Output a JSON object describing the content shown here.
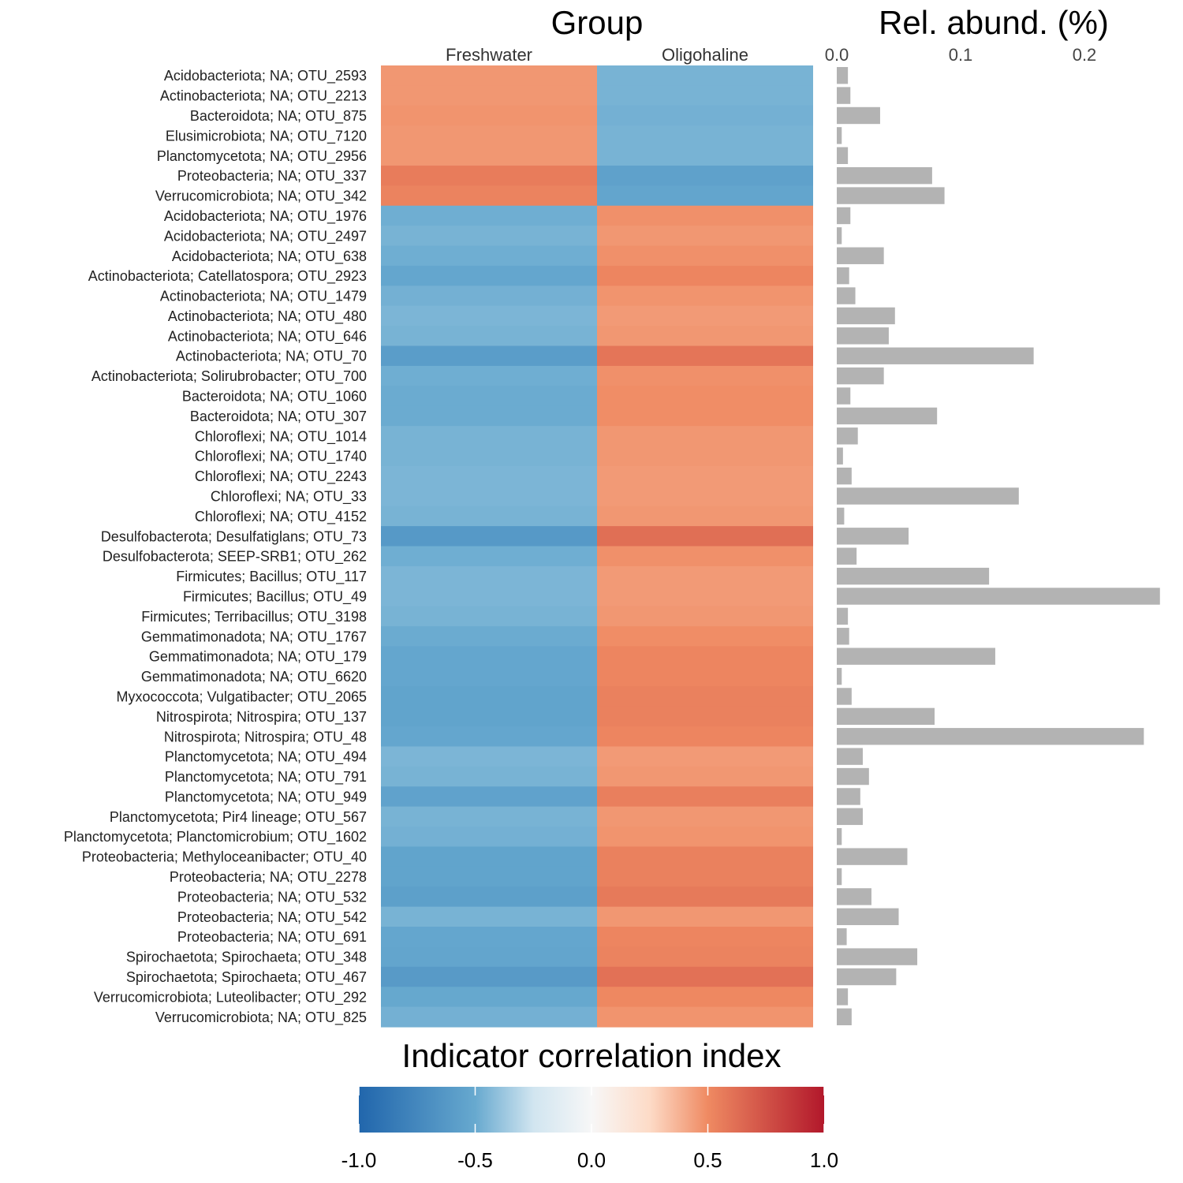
{
  "titles": {
    "group": "Group",
    "abundance": "Rel. abund. (%)",
    "legend": "Indicator correlation index"
  },
  "chart_data": {
    "type": "heatmap",
    "columns": [
      "Freshwater",
      "Oligohaline"
    ],
    "rows": [
      {
        "label": "Acidobacteriota; NA; OTU_2593",
        "fresh": 0.46,
        "oligo": -0.46,
        "abund": 0.009
      },
      {
        "label": "Actinobacteriota; NA; OTU_2213",
        "fresh": 0.46,
        "oligo": -0.46,
        "abund": 0.011
      },
      {
        "label": "Bacteroidota; NA; OTU_875",
        "fresh": 0.47,
        "oligo": -0.47,
        "abund": 0.035
      },
      {
        "label": "Elusimicrobiota; NA; OTU_7120",
        "fresh": 0.46,
        "oligo": -0.46,
        "abund": 0.004
      },
      {
        "label": "Planctomycetota; NA; OTU_2956",
        "fresh": 0.46,
        "oligo": -0.46,
        "abund": 0.009
      },
      {
        "label": "Proteobacteria; NA; OTU_337",
        "fresh": 0.56,
        "oligo": -0.56,
        "abund": 0.077
      },
      {
        "label": "Verrucomicrobiota; NA; OTU_342",
        "fresh": 0.53,
        "oligo": -0.53,
        "abund": 0.087
      },
      {
        "label": "Acidobacteriota; NA; OTU_1976",
        "fresh": -0.48,
        "oligo": 0.48,
        "abund": 0.011
      },
      {
        "label": "Acidobacteriota; NA; OTU_2497",
        "fresh": -0.46,
        "oligo": 0.46,
        "abund": 0.004
      },
      {
        "label": "Acidobacteriota; NA; OTU_638",
        "fresh": -0.48,
        "oligo": 0.48,
        "abund": 0.038
      },
      {
        "label": "Actinobacteriota; Catellatospora; OTU_2923",
        "fresh": -0.52,
        "oligo": 0.52,
        "abund": 0.01
      },
      {
        "label": "Actinobacteriota; NA; OTU_1479",
        "fresh": -0.47,
        "oligo": 0.47,
        "abund": 0.015
      },
      {
        "label": "Actinobacteriota; NA; OTU_480",
        "fresh": -0.45,
        "oligo": 0.45,
        "abund": 0.047
      },
      {
        "label": "Actinobacteriota; NA; OTU_646",
        "fresh": -0.46,
        "oligo": 0.46,
        "abund": 0.042
      },
      {
        "label": "Actinobacteriota; NA; OTU_70",
        "fresh": -0.59,
        "oligo": 0.59,
        "abund": 0.159
      },
      {
        "label": "Actinobacteriota; Solirubrobacter; OTU_700",
        "fresh": -0.48,
        "oligo": 0.48,
        "abund": 0.038
      },
      {
        "label": "Bacteroidota; NA; OTU_1060",
        "fresh": -0.49,
        "oligo": 0.49,
        "abund": 0.011
      },
      {
        "label": "Bacteroidota; NA; OTU_307",
        "fresh": -0.49,
        "oligo": 0.49,
        "abund": 0.081
      },
      {
        "label": "Chloroflexi; NA; OTU_1014",
        "fresh": -0.46,
        "oligo": 0.46,
        "abund": 0.017
      },
      {
        "label": "Chloroflexi; NA; OTU_1740",
        "fresh": -0.46,
        "oligo": 0.46,
        "abund": 0.005
      },
      {
        "label": "Chloroflexi; NA; OTU_2243",
        "fresh": -0.45,
        "oligo": 0.45,
        "abund": 0.012
      },
      {
        "label": "Chloroflexi; NA; OTU_33",
        "fresh": -0.45,
        "oligo": 0.45,
        "abund": 0.147
      },
      {
        "label": "Chloroflexi; NA; OTU_4152",
        "fresh": -0.46,
        "oligo": 0.46,
        "abund": 0.006
      },
      {
        "label": "Desulfobacterota; Desulfatiglans; OTU_73",
        "fresh": -0.62,
        "oligo": 0.62,
        "abund": 0.058
      },
      {
        "label": "Desulfobacterota; SEEP-SRB1; OTU_262",
        "fresh": -0.48,
        "oligo": 0.48,
        "abund": 0.016
      },
      {
        "label": "Firmicutes; Bacillus; OTU_117",
        "fresh": -0.45,
        "oligo": 0.45,
        "abund": 0.123
      },
      {
        "label": "Firmicutes; Bacillus; OTU_49",
        "fresh": -0.45,
        "oligo": 0.45,
        "abund": 0.261
      },
      {
        "label": "Firmicutes; Terribacillus; OTU_3198",
        "fresh": -0.46,
        "oligo": 0.46,
        "abund": 0.009
      },
      {
        "label": "Gemmatimonadota; NA; OTU_1767",
        "fresh": -0.49,
        "oligo": 0.49,
        "abund": 0.01
      },
      {
        "label": "Gemmatimonadota; NA; OTU_179",
        "fresh": -0.52,
        "oligo": 0.52,
        "abund": 0.128
      },
      {
        "label": "Gemmatimonadota; NA; OTU_6620",
        "fresh": -0.52,
        "oligo": 0.52,
        "abund": 0.004
      },
      {
        "label": "Myxococcota; Vulgatibacter; OTU_2065",
        "fresh": -0.54,
        "oligo": 0.54,
        "abund": 0.012
      },
      {
        "label": "Nitrospirota; Nitrospira; OTU_137",
        "fresh": -0.54,
        "oligo": 0.54,
        "abund": 0.079
      },
      {
        "label": "Nitrospirota; Nitrospira; OTU_48",
        "fresh": -0.52,
        "oligo": 0.52,
        "abund": 0.248
      },
      {
        "label": "Planctomycetota; NA; OTU_494",
        "fresh": -0.45,
        "oligo": 0.45,
        "abund": 0.021
      },
      {
        "label": "Planctomycetota; NA; OTU_791",
        "fresh": -0.46,
        "oligo": 0.46,
        "abund": 0.026
      },
      {
        "label": "Planctomycetota; NA; OTU_949",
        "fresh": -0.55,
        "oligo": 0.55,
        "abund": 0.019
      },
      {
        "label": "Planctomycetota; Pir4 lineage; OTU_567",
        "fresh": -0.46,
        "oligo": 0.46,
        "abund": 0.021
      },
      {
        "label": "Planctomycetota; Planctomicrobium; OTU_1602",
        "fresh": -0.47,
        "oligo": 0.47,
        "abund": 0.004
      },
      {
        "label": "Proteobacteria; Methyloceanibacter; OTU_40",
        "fresh": -0.54,
        "oligo": 0.54,
        "abund": 0.057
      },
      {
        "label": "Proteobacteria; NA; OTU_2278",
        "fresh": -0.54,
        "oligo": 0.54,
        "abund": 0.004
      },
      {
        "label": "Proteobacteria; NA; OTU_532",
        "fresh": -0.57,
        "oligo": 0.57,
        "abund": 0.028
      },
      {
        "label": "Proteobacteria; NA; OTU_542",
        "fresh": -0.46,
        "oligo": 0.46,
        "abund": 0.05
      },
      {
        "label": "Proteobacteria; NA; OTU_691",
        "fresh": -0.52,
        "oligo": 0.52,
        "abund": 0.008
      },
      {
        "label": "Spirochaetota; Spirochaeta; OTU_348",
        "fresh": -0.53,
        "oligo": 0.53,
        "abund": 0.065
      },
      {
        "label": "Spirochaetota; Spirochaeta; OTU_467",
        "fresh": -0.61,
        "oligo": 0.61,
        "abund": 0.048
      },
      {
        "label": "Verrucomicrobiota; Luteolibacter; OTU_292",
        "fresh": -0.51,
        "oligo": 0.51,
        "abund": 0.009
      },
      {
        "label": "Verrucomicrobiota; NA; OTU_825",
        "fresh": -0.47,
        "oligo": 0.47,
        "abund": 0.012
      }
    ],
    "abund_axis": {
      "ticks": [
        0.0,
        0.1,
        0.2
      ],
      "tick_labels": [
        "0.0",
        "0.1",
        "0.2"
      ],
      "range": [
        0,
        0.26
      ]
    },
    "color_scale": {
      "range": [
        -1,
        1
      ],
      "ticks": [
        -1.0,
        -0.5,
        0.0,
        0.5,
        1.0
      ],
      "tick_labels": [
        "-1.0",
        "-0.5",
        "0.0",
        "0.5",
        "1.0"
      ],
      "stops": [
        {
          "v": -1.0,
          "c": "#2166ac"
        },
        {
          "v": -0.5,
          "c": "#67a9cf"
        },
        {
          "v": -0.25,
          "c": "#d1e5f0"
        },
        {
          "v": 0.0,
          "c": "#f7f7f7"
        },
        {
          "v": 0.25,
          "c": "#fddbc7"
        },
        {
          "v": 0.5,
          "c": "#ef8a62"
        },
        {
          "v": 1.0,
          "c": "#b2182b"
        }
      ]
    },
    "bar_color": "#b3b3b3"
  }
}
